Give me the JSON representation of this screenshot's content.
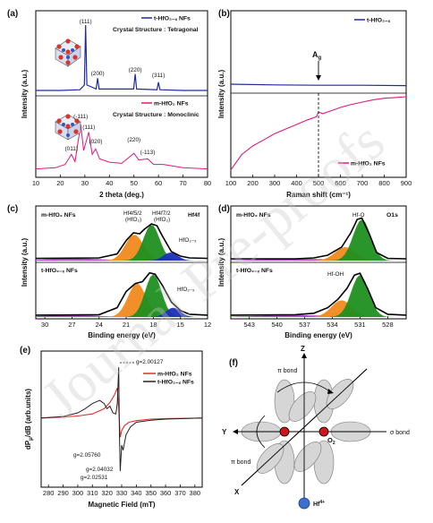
{
  "watermark": "Journal Pre-proofs",
  "panels": {
    "a": {
      "tag": "(a)",
      "ylabel": "Intensity (a.u.)",
      "xlabel": "2 theta (deg.)",
      "xticks": [
        "10",
        "20",
        "30",
        "40",
        "50",
        "60",
        "70",
        "80"
      ],
      "top": {
        "legend": "t-HfO₂₋ₓ NFs",
        "structure": "Crystal Structure : Tetragonal",
        "peaks": [
          {
            "label": "(111)",
            "x": 30.3
          },
          {
            "label": "(200)",
            "x": 35.2
          },
          {
            "label": "(220)",
            "x": 50.5
          },
          {
            "label": "(311)",
            "x": 60.0
          }
        ]
      },
      "bottom": {
        "legend": "m-HfO₂ NFs",
        "structure": "Crystal Structure : Monoclinic",
        "peaks": [
          {
            "label": "(-111)",
            "x": 28.3
          },
          {
            "label": "(111)",
            "x": 31.6
          },
          {
            "label": "(011)",
            "x": 24.5
          },
          {
            "label": "(020)",
            "x": 34.4
          },
          {
            "label": "(220)",
            "x": 50.0
          },
          {
            "label": "(-113)",
            "x": 55.6
          }
        ]
      }
    },
    "b": {
      "tag": "(b)",
      "ylabel": "Intensity (a.u.)",
      "xlabel": "Raman shift (cm⁻¹)",
      "xticks": [
        "100",
        "200",
        "300",
        "400",
        "500",
        "600",
        "700",
        "800",
        "900"
      ],
      "top_legend": "t-HfO₂₋ₓ",
      "bottom_legend": "m-HfO₂ NFs",
      "annotation": "A",
      "annotation_sub": "g"
    },
    "c": {
      "tag": "(c)",
      "ylabel": "Intensity (a.u.)",
      "xlabel": "Binding energy (eV)",
      "xticks": [
        "30",
        "27",
        "24",
        "21",
        "18",
        "15",
        "12"
      ],
      "top_sample": "m-HfO₂ NFs",
      "top_right": "Hf4f",
      "bottom_sample": "t-HfO₂₋ₓ NFs",
      "ann_a1": "Hf4f5/2",
      "ann_a2": "(HfO₂)",
      "ann_b1": "Hf4f7/2",
      "ann_b2": "(HfO₂)",
      "ann_c": "HfO₂₋ₓ",
      "ann_d": "HfO₂₋ₓ"
    },
    "d": {
      "tag": "(d)",
      "ylabel": "Intensity (a.u.)",
      "xlabel": "Binding energy (eV)",
      "xticks": [
        "543",
        "540",
        "537",
        "534",
        "531",
        "528"
      ],
      "top_sample": "m-HfO₂ NFs",
      "top_right": "O1s",
      "bottom_sample": "t-HfO₂₋ₓ NFs",
      "ann_top": "Hf-O",
      "ann_bottom": "Hf-OH"
    },
    "e": {
      "tag": "(e)",
      "ylabel": "dP /dB (arb.units)",
      "ylabel_sub": "μ",
      "xlabel": "Magnetic Field (mT)",
      "xticks": [
        "280",
        "290",
        "300",
        "310",
        "320",
        "330",
        "340",
        "350",
        "360",
        "370",
        "380"
      ],
      "legend_red": "m-HfO₂ NFs",
      "legend_black": "t-HfO₂₋ₓ NFs",
      "g_labels": [
        "g=2.00127",
        "g=2.05760",
        "g=2.04032",
        "g=2.02531"
      ]
    },
    "f": {
      "tag": "(f)",
      "z": "Z",
      "y": "Y",
      "x": "X",
      "pi_top": "π bond",
      "pi_bottom": "π bond",
      "sigma": "σ bond",
      "o2": "O",
      "o2_sub": "2",
      "hf": "Hf",
      "hf_sup": "4+"
    }
  },
  "chart_data": [
    {
      "type": "line",
      "panel": "a-top",
      "xlabel": "2 theta (deg.)",
      "ylabel": "Intensity (a.u.)",
      "xlim": [
        10,
        80
      ],
      "series": [
        {
          "name": "t-HfO₂₋ₓ NFs",
          "color": "#1f2a9e",
          "x": [
            10,
            20,
            28,
            29.8,
            30.3,
            30.8,
            34.6,
            35.2,
            35.8,
            49.9,
            50.5,
            51.1,
            59.4,
            60,
            60.6,
            70,
            80
          ],
          "y": [
            0.04,
            0.04,
            0.05,
            0.12,
            1.0,
            0.12,
            0.06,
            0.22,
            0.06,
            0.06,
            0.28,
            0.06,
            0.05,
            0.16,
            0.05,
            0.04,
            0.04
          ]
        }
      ]
    },
    {
      "type": "line",
      "panel": "a-bottom",
      "xlabel": "2 theta (deg.)",
      "ylabel": "Intensity (a.u.)",
      "xlim": [
        10,
        80
      ],
      "series": [
        {
          "name": "m-HfO₂ NFs",
          "color": "#e0197d",
          "x": [
            10,
            18,
            22,
            24.5,
            26,
            28.3,
            29.5,
            31.6,
            33,
            34.4,
            36,
            40,
            45,
            50,
            52,
            55.6,
            58,
            62,
            70,
            80
          ],
          "y": [
            0.12,
            0.14,
            0.2,
            0.38,
            0.25,
            0.92,
            0.45,
            0.78,
            0.38,
            0.48,
            0.3,
            0.24,
            0.22,
            0.4,
            0.28,
            0.3,
            0.2,
            0.2,
            0.14,
            0.12
          ]
        }
      ]
    },
    {
      "type": "line",
      "panel": "b-top",
      "xlabel": "Raman shift (cm⁻¹)",
      "ylabel": "Intensity (a.u.)",
      "xlim": [
        100,
        900
      ],
      "series": [
        {
          "name": "t-HfO₂₋ₓ",
          "color": "#1f2a9e",
          "x": [
            100,
            300,
            500,
            700,
            900
          ],
          "y": [
            0.15,
            0.13,
            0.12,
            0.12,
            0.11
          ]
        }
      ]
    },
    {
      "type": "line",
      "panel": "b-bottom",
      "xlabel": "Raman shift (cm⁻¹)",
      "ylabel": "Intensity (a.u.)",
      "xlim": [
        100,
        900
      ],
      "series": [
        {
          "name": "m-HfO₂ NFs",
          "color": "#e0197d",
          "x": [
            100,
            150,
            200,
            250,
            300,
            350,
            400,
            450,
            490,
            500,
            520,
            560,
            600,
            650,
            700,
            750,
            800,
            850,
            900
          ],
          "y": [
            0.05,
            0.25,
            0.36,
            0.44,
            0.52,
            0.58,
            0.64,
            0.7,
            0.74,
            0.8,
            0.78,
            0.82,
            0.86,
            0.9,
            0.93,
            0.96,
            0.98,
            0.99,
            1.0
          ]
        }
      ]
    },
    {
      "type": "line",
      "panel": "c-top",
      "xlabel": "Binding energy (eV)",
      "xlim": [
        31,
        12
      ],
      "series": [
        {
          "name": "m-HfO₂ NFs",
          "color": "#000000",
          "x": [
            31,
            24,
            22,
            21,
            20.2,
            19.5,
            19,
            18.2,
            17.6,
            17,
            16,
            15,
            14,
            12
          ],
          "y": [
            0.05,
            0.06,
            0.15,
            0.45,
            0.62,
            0.6,
            0.7,
            0.82,
            0.78,
            0.55,
            0.2,
            0.1,
            0.06,
            0.05
          ]
        }
      ]
    },
    {
      "type": "line",
      "panel": "c-bottom",
      "xlabel": "Binding energy (eV)",
      "xlim": [
        31,
        12
      ],
      "series": [
        {
          "name": "t-HfO₂₋ₓ NFs",
          "color": "#000000",
          "x": [
            31,
            24,
            22,
            21,
            20,
            19.2,
            18.4,
            17.8,
            17,
            16,
            15,
            14,
            12
          ],
          "y": [
            0.04,
            0.05,
            0.2,
            0.55,
            0.72,
            0.76,
            0.95,
            0.92,
            0.68,
            0.32,
            0.14,
            0.06,
            0.04
          ]
        }
      ]
    },
    {
      "type": "line",
      "panel": "d-top",
      "xlabel": "Binding energy (eV)",
      "xlim": [
        545,
        526
      ],
      "series": [
        {
          "name": "m-HfO₂ NFs",
          "color": "#000000",
          "x": [
            545,
            538,
            536,
            534.5,
            533,
            532,
            531.3,
            530.8,
            530,
            529.2,
            528,
            526
          ],
          "y": [
            0.04,
            0.04,
            0.06,
            0.12,
            0.3,
            0.62,
            0.92,
            0.95,
            0.6,
            0.18,
            0.05,
            0.04
          ]
        }
      ]
    },
    {
      "type": "line",
      "panel": "d-bottom",
      "xlabel": "Binding energy (eV)",
      "xlim": [
        545,
        526
      ],
      "series": [
        {
          "name": "t-HfO₂₋ₓ NFs",
          "color": "#000000",
          "x": [
            545,
            538,
            536,
            534.5,
            533.4,
            532.4,
            531.6,
            531,
            530.2,
            529.3,
            528,
            526
          ],
          "y": [
            0.04,
            0.05,
            0.08,
            0.2,
            0.38,
            0.62,
            0.9,
            0.94,
            0.62,
            0.2,
            0.06,
            0.04
          ]
        }
      ]
    },
    {
      "type": "line",
      "panel": "e",
      "xlabel": "Magnetic Field (mT)",
      "ylabel": "dPμ/dB (arb.units)",
      "xlim": [
        275,
        385
      ],
      "series": [
        {
          "name": "m-HfO₂ NFs",
          "color": "#e0302b",
          "x": [
            275,
            290,
            300,
            310,
            318,
            322,
            325,
            327,
            328,
            329,
            330,
            332,
            335,
            340,
            350,
            360,
            385
          ],
          "y": [
            0.02,
            0.04,
            0.06,
            0.1,
            0.2,
            0.32,
            0.46,
            0.6,
            0.2,
            -0.35,
            -0.22,
            -0.12,
            -0.06,
            -0.03,
            0,
            0.01,
            0.02
          ]
        },
        {
          "name": "t-HfO₂₋ₓ NFs",
          "color": "#222222",
          "x": [
            275,
            290,
            300,
            305,
            310,
            315,
            318,
            320,
            322,
            324,
            326,
            327,
            328,
            328.5,
            329,
            330,
            331,
            333,
            336,
            340,
            350,
            360,
            385
          ],
          "y": [
            0.02,
            0.05,
            0.12,
            0.2,
            0.3,
            0.36,
            0.3,
            0.2,
            0.25,
            0.12,
            0.1,
            0.3,
            1.0,
            -0.3,
            -1.0,
            -0.5,
            -0.6,
            -0.3,
            -0.15,
            -0.06,
            -0.02,
            0,
            0.02
          ]
        }
      ]
    }
  ]
}
